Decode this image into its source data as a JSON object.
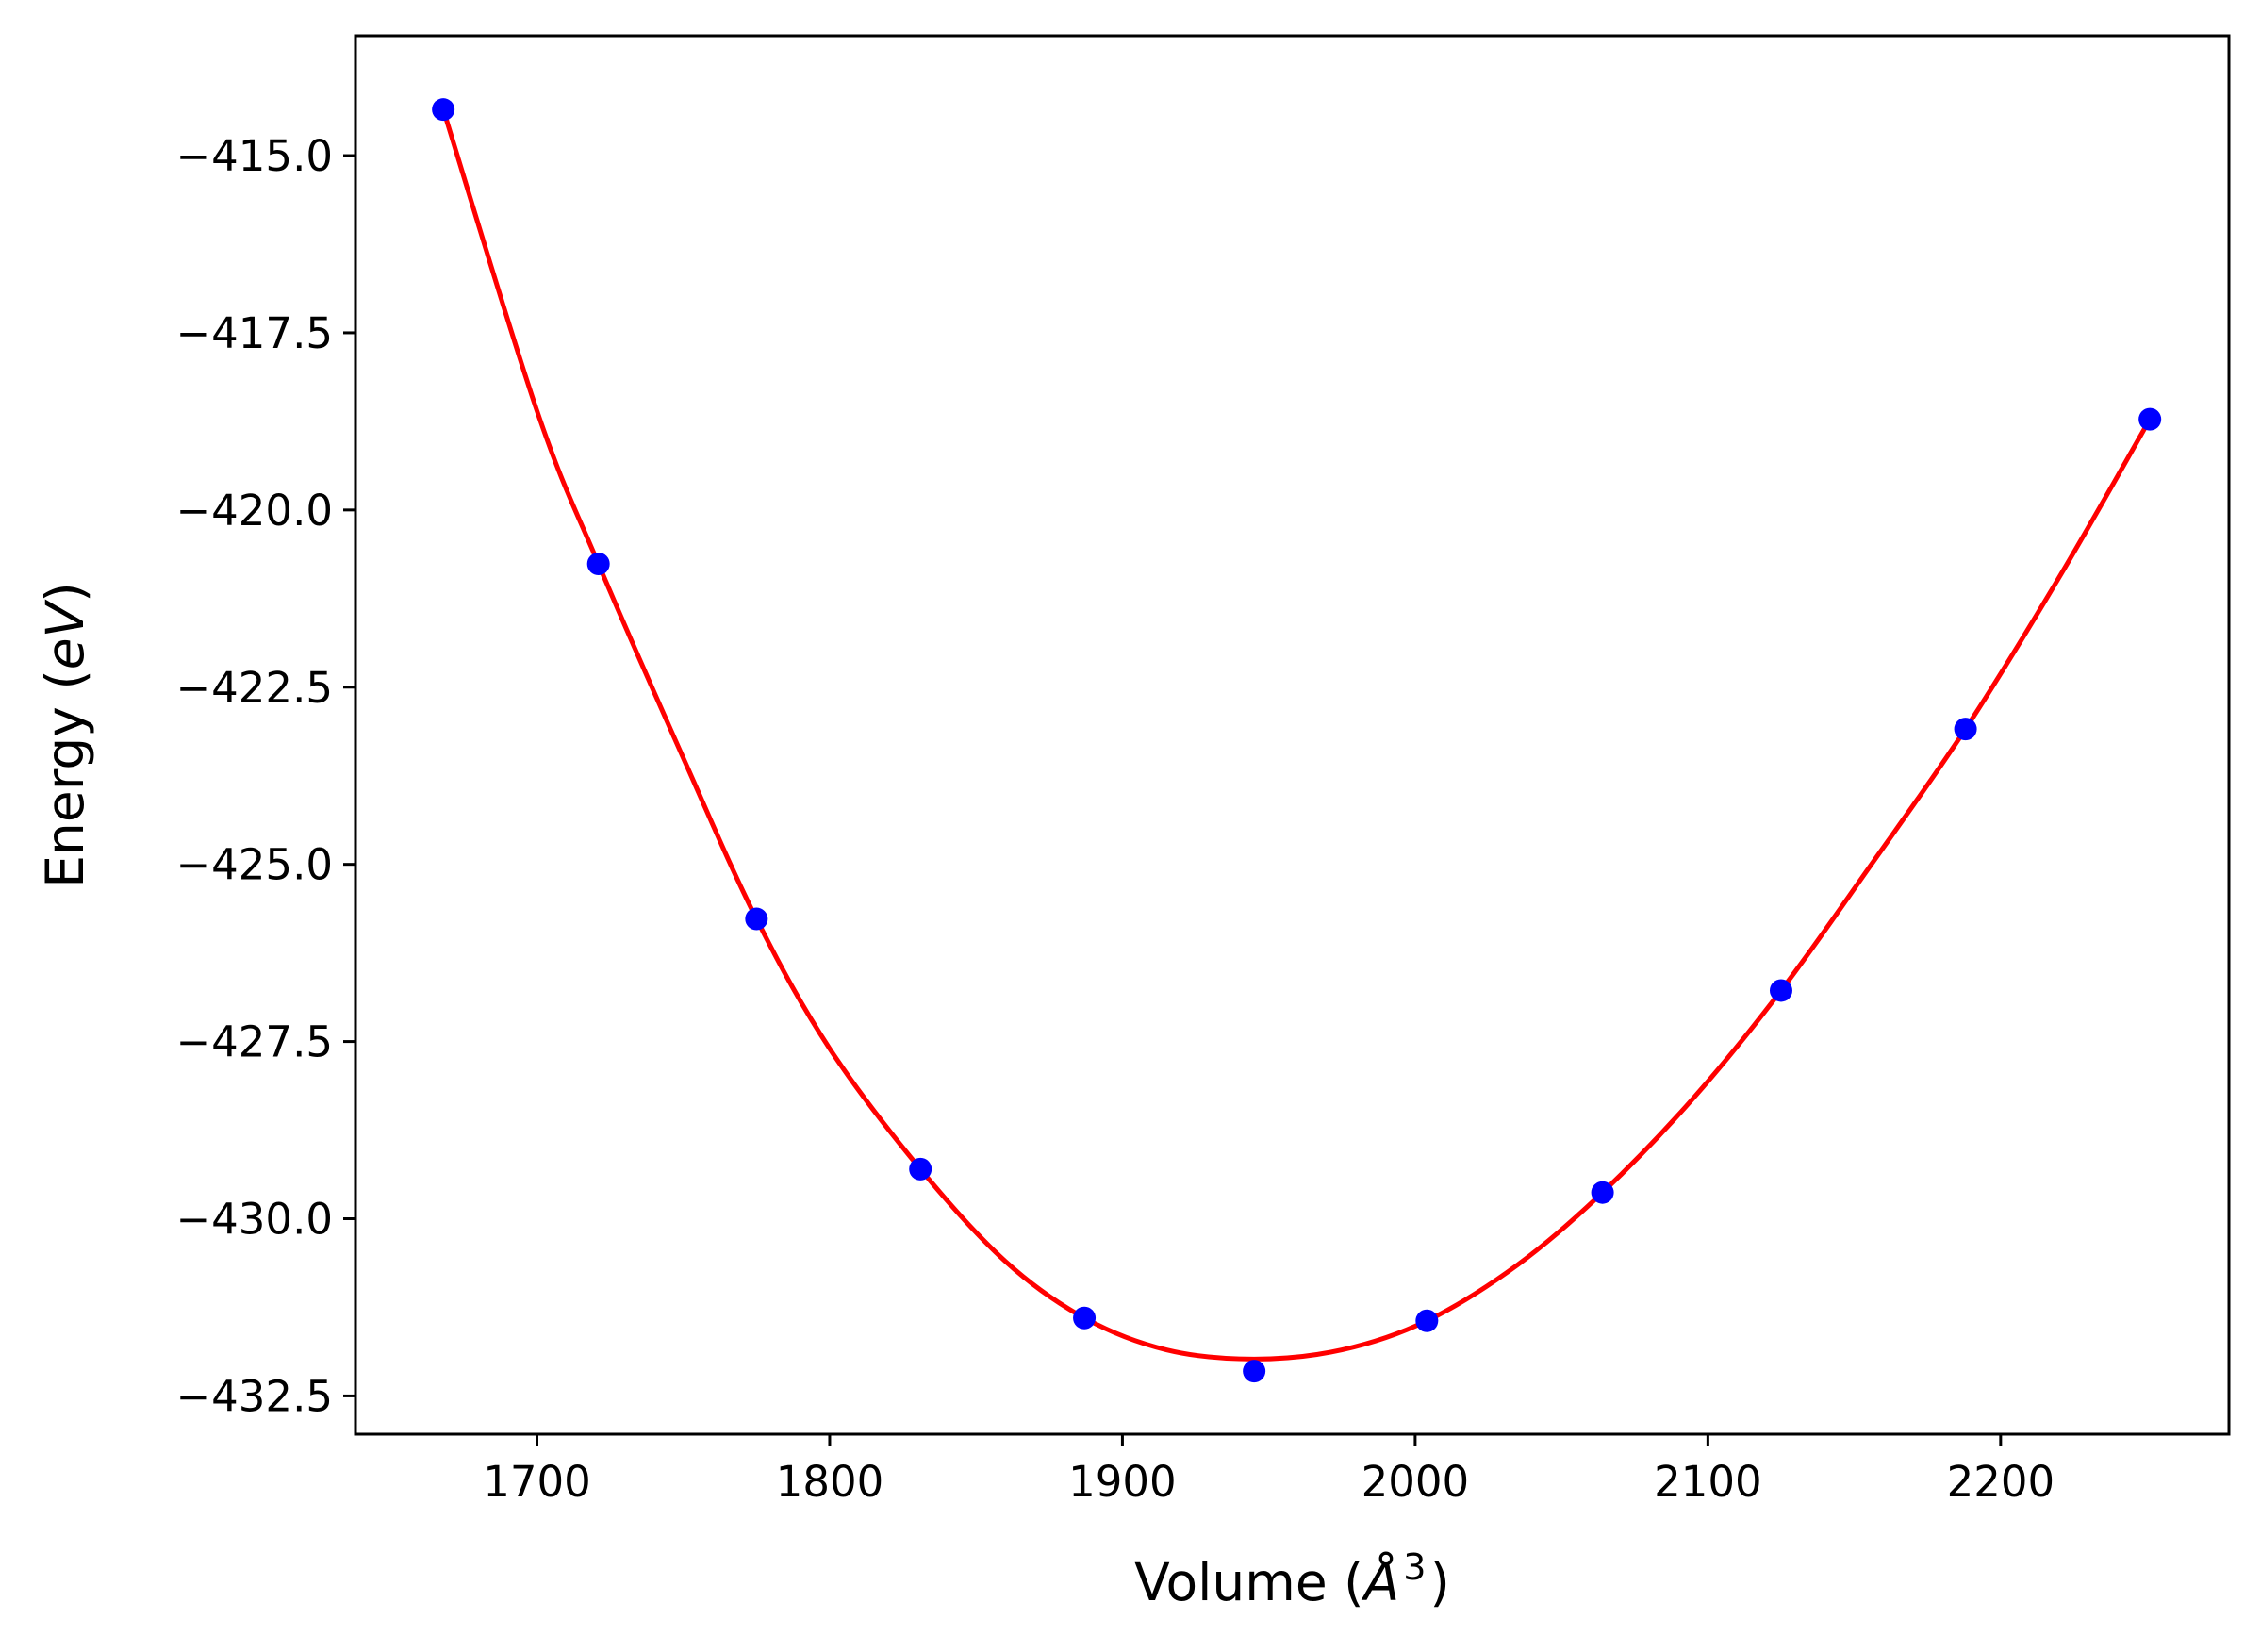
{
  "chart_data": {
    "type": "scatter",
    "xlabel": "Volume (",
    "xlabel_symbol": "Å",
    "xlabel_exponent": "3",
    "xlabel_close": ")",
    "ylabel": "Energy (",
    "ylabel_unit": "eV",
    "ylabel_close": ")",
    "xlim": [
      1638,
      2278
    ],
    "ylim": [
      -433.04,
      -413.31
    ],
    "x_ticks": [
      1700,
      1800,
      1900,
      2000,
      2100,
      2200
    ],
    "x_tick_labels": [
      "1700",
      "1800",
      "1900",
      "2000",
      "2100",
      "2200"
    ],
    "y_ticks": [
      -415.0,
      -417.5,
      -420.0,
      -422.5,
      -425.0,
      -427.5,
      -430.0,
      -432.5
    ],
    "y_tick_labels": [
      "−415.0",
      "−417.5",
      "−420.0",
      "−422.5",
      "−425.0",
      "−427.5",
      "−430.0",
      "−432.5"
    ],
    "grid": false,
    "series": [
      {
        "kind": "points",
        "color": "#0000ff",
        "x": [
          1668,
          1721,
          1775,
          1831,
          1887,
          1945,
          2004,
          2064,
          2125,
          2188,
          2251
        ],
        "y": [
          -414.35,
          -420.76,
          -425.77,
          -429.3,
          -431.4,
          -432.15,
          -431.44,
          -429.63,
          -426.78,
          -423.09,
          -418.72
        ]
      },
      {
        "kind": "fit-curve",
        "color": "#ff0000",
        "x": [
          1668,
          1700,
          1721,
          1750,
          1775,
          1800,
          1831,
          1860,
          1887,
          1915,
          1945,
          1975,
          2004,
          2035,
          2064,
          2095,
          2125,
          2155,
          2188,
          2220,
          2251
        ],
        "y": [
          -414.35,
          -418.6,
          -420.76,
          -423.5,
          -425.77,
          -427.6,
          -429.3,
          -430.6,
          -431.4,
          -431.85,
          -431.98,
          -431.85,
          -431.44,
          -430.65,
          -429.63,
          -428.3,
          -426.78,
          -425.05,
          -423.09,
          -420.95,
          -418.72
        ]
      }
    ]
  }
}
